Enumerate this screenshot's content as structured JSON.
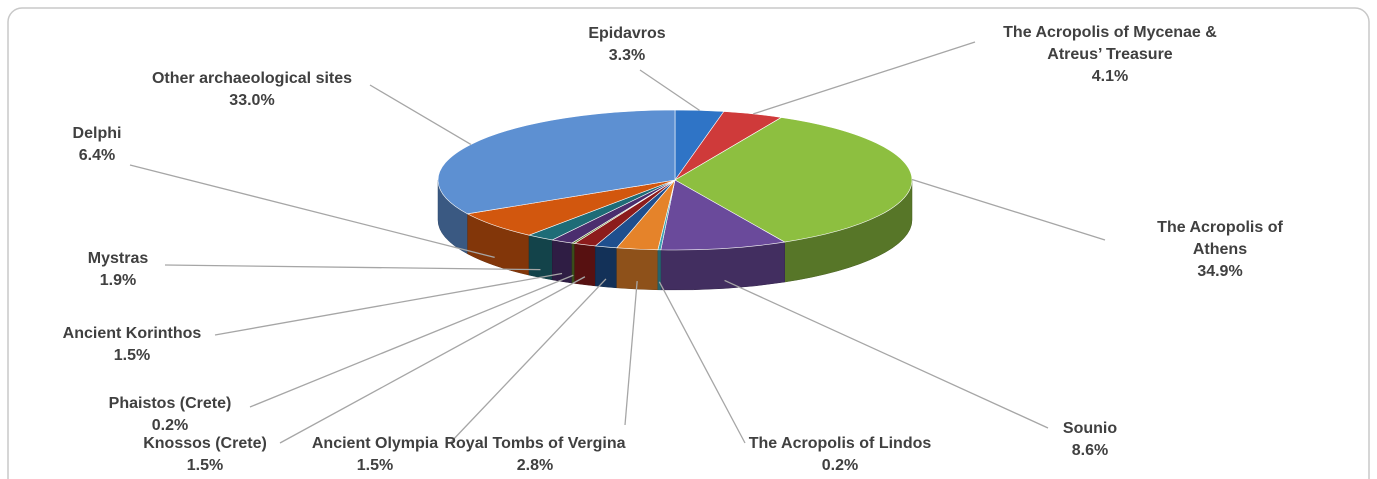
{
  "chart_data": {
    "type": "pie",
    "categories": [
      "Epidavros",
      "The Acropolis of Mycenae & Atreus’ Treasure",
      "The Acropolis of Athens",
      "Sounio",
      "The Acropolis of Lindos",
      "Royal Tombs of Vergina",
      "Ancient Olympia",
      "Knossos (Crete)",
      "Phaistos (Crete)",
      "Ancient Korinthos",
      "Mystras",
      "Delphi",
      "Other archaeological sites"
    ],
    "values": [
      3.3,
      4.1,
      34.9,
      8.6,
      0.2,
      2.8,
      1.5,
      1.5,
      0.2,
      1.5,
      1.9,
      6.4,
      33.0
    ],
    "value_labels": [
      "3.3%",
      "4.1%",
      "34.9%",
      "8.6%",
      "0.2%",
      "2.8%",
      "1.5%",
      "1.5%",
      "0.2%",
      "1.5%",
      "1.9%",
      "6.4%",
      "33.0%"
    ],
    "colors": [
      "#2f74c6",
      "#cf3a3a",
      "#8dbf40",
      "#6a4a9b",
      "#3ba2b2",
      "#e5832a",
      "#1f4f8e",
      "#8c1c1c",
      "#5e7f2c",
      "#4b2e6e",
      "#1e6c77",
      "#d2570e",
      "#5d90d2"
    ]
  }
}
